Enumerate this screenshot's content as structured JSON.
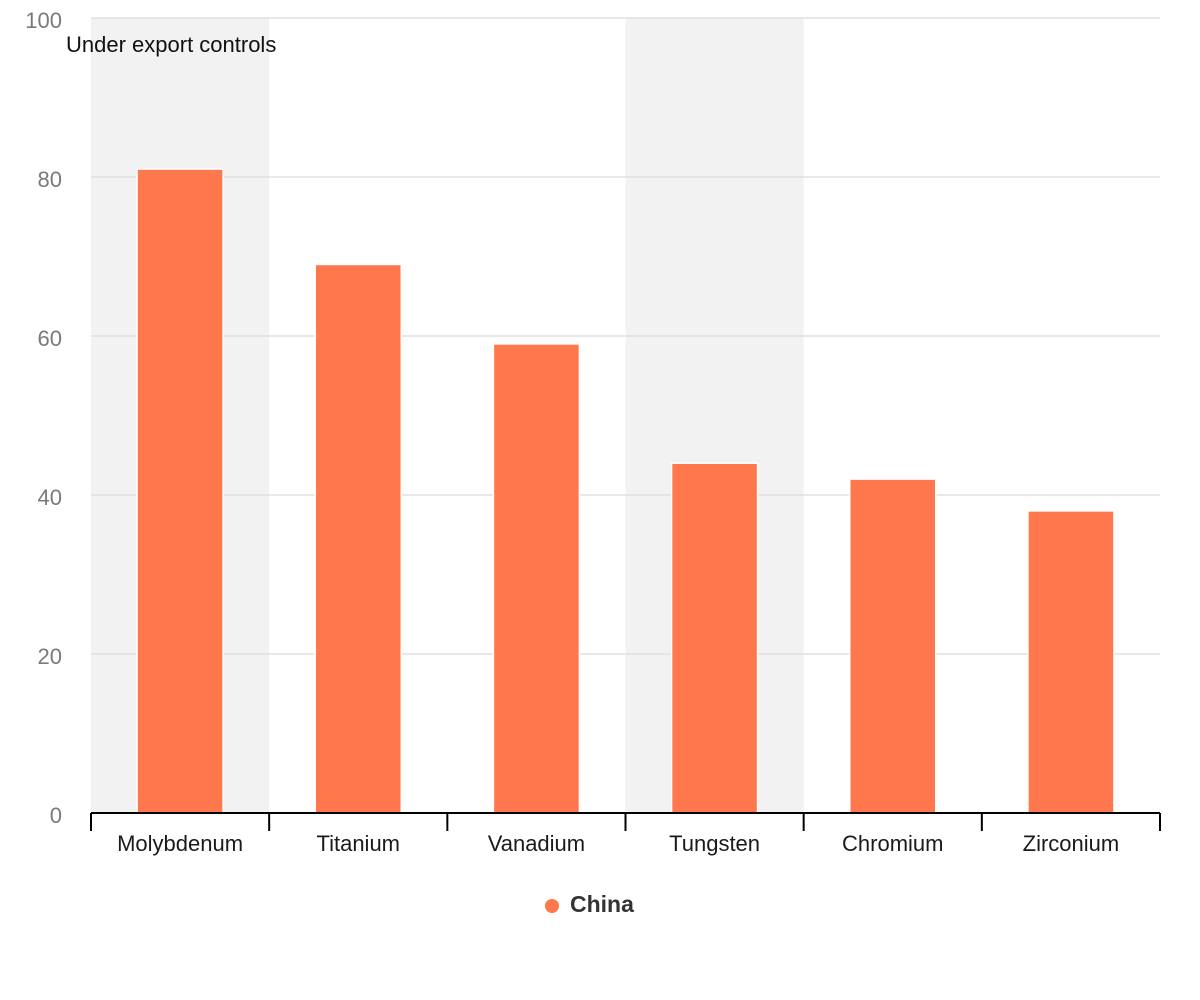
{
  "chart_data": {
    "type": "bar",
    "categories": [
      "Molybdenum",
      "Titanium",
      "Vanadium",
      "Tungsten",
      "Chromium",
      "Zirconium"
    ],
    "series": [
      {
        "name": "China",
        "values": [
          81,
          69,
          59,
          44,
          42,
          38
        ],
        "color": "#ff774d"
      }
    ],
    "ylim": [
      0,
      100
    ],
    "yticks": [
      0,
      20,
      40,
      60,
      80,
      100
    ],
    "grid": true,
    "legend": "bottom-center",
    "highlight_bands": {
      "label": "Under export controls",
      "categories": [
        "Molybdenum",
        "Tungsten"
      ],
      "color": "#f2f2f2"
    },
    "colors": {
      "gridline": "#e0e0e0",
      "axis": "#000000"
    }
  }
}
